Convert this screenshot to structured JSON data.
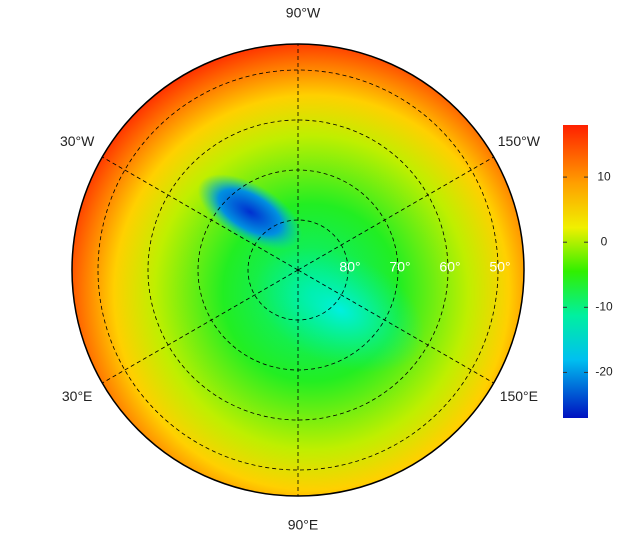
{
  "map": {
    "longitude_labels": [
      {
        "value": -90,
        "label": "90°W"
      },
      {
        "value": -30,
        "label": "30°W"
      },
      {
        "value": -150,
        "label": "150°W"
      },
      {
        "value": 30,
        "label": "30°E"
      },
      {
        "value": 150,
        "label": "150°E"
      },
      {
        "value": 90,
        "label": "90°E"
      }
    ],
    "latitude_labels": [
      {
        "value": 80,
        "label": "80°"
      },
      {
        "value": 70,
        "label": "70°"
      },
      {
        "value": 60,
        "label": "60°"
      },
      {
        "value": 50,
        "label": "50°"
      }
    ],
    "colorbar": {
      "lim": [
        -27,
        18
      ],
      "ticks": [
        10,
        0,
        -10,
        -20
      ]
    }
  }
}
